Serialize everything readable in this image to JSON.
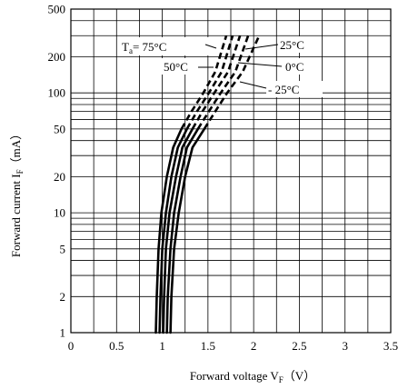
{
  "chart_data": {
    "type": "line",
    "title": "",
    "xlabel": {
      "main": "Forward voltage V",
      "sub": "F",
      "unit": "（V）"
    },
    "ylabel": {
      "main": "Forward current I",
      "sub": "F",
      "unit": "（mA）"
    },
    "xlim": [
      0,
      3.5
    ],
    "ylim": [
      1,
      500
    ],
    "yscale": "log",
    "grid": true,
    "x_ticks": [
      {
        "value": 0,
        "label": "0"
      },
      {
        "value": 0.5,
        "label": "0.5"
      },
      {
        "value": 1,
        "label": "1"
      },
      {
        "value": 1.5,
        "label": "1.5"
      },
      {
        "value": 2,
        "label": "2"
      },
      {
        "value": 2.5,
        "label": "2.5"
      },
      {
        "value": 3,
        "label": "3"
      },
      {
        "value": 3.5,
        "label": "3.5"
      }
    ],
    "y_ticks": [
      {
        "value": 1,
        "label": "1"
      },
      {
        "value": 2,
        "label": "2"
      },
      {
        "value": 5,
        "label": "5"
      },
      {
        "value": 10,
        "label": "10"
      },
      {
        "value": 20,
        "label": "20"
      },
      {
        "value": 50,
        "label": "50"
      },
      {
        "value": 100,
        "label": "100"
      },
      {
        "value": 200,
        "label": "200"
      },
      {
        "value": 500,
        "label": "500"
      }
    ],
    "y_grid_values": [
      1,
      2,
      3,
      4,
      5,
      6,
      7,
      8,
      9,
      10,
      20,
      30,
      40,
      50,
      60,
      70,
      80,
      90,
      100,
      200,
      300,
      400,
      500
    ],
    "solid_until": 50,
    "series": [
      {
        "name": "75°C",
        "x": [
          0.93,
          0.94,
          0.96,
          0.99,
          1.05,
          1.12,
          1.21,
          1.32,
          1.45,
          1.58,
          1.7
        ],
        "y": [
          1,
          2,
          5,
          10,
          20,
          35,
          50,
          70,
          100,
          150,
          300
        ]
      },
      {
        "name": "50°C",
        "x": [
          0.97,
          0.98,
          1.0,
          1.04,
          1.1,
          1.17,
          1.27,
          1.38,
          1.51,
          1.65,
          1.77
        ],
        "y": [
          1,
          2,
          5,
          10,
          20,
          35,
          50,
          70,
          100,
          150,
          300
        ]
      },
      {
        "name": "25°C",
        "x": [
          1.01,
          1.02,
          1.04,
          1.08,
          1.15,
          1.22,
          1.33,
          1.44,
          1.57,
          1.72,
          1.85
        ],
        "y": [
          1,
          2,
          5,
          10,
          20,
          35,
          50,
          70,
          100,
          150,
          300
        ]
      },
      {
        "name": "0°C",
        "x": [
          1.05,
          1.06,
          1.09,
          1.13,
          1.2,
          1.27,
          1.39,
          1.51,
          1.64,
          1.8,
          1.94
        ],
        "y": [
          1,
          2,
          5,
          10,
          20,
          35,
          50,
          70,
          100,
          150,
          300
        ]
      },
      {
        "name": "- 25°C",
        "x": [
          1.09,
          1.1,
          1.13,
          1.18,
          1.25,
          1.33,
          1.46,
          1.58,
          1.71,
          1.88,
          2.06
        ],
        "y": [
          1,
          2,
          5,
          10,
          20,
          35,
          50,
          70,
          100,
          150,
          300
        ]
      }
    ],
    "annotations": {
      "ta_prefix": "T",
      "ta_sub": "a",
      "ta_eq": "=",
      "labels": [
        "75°C",
        "50°C",
        "25°C",
        "0°C",
        "- 25°C"
      ]
    }
  }
}
